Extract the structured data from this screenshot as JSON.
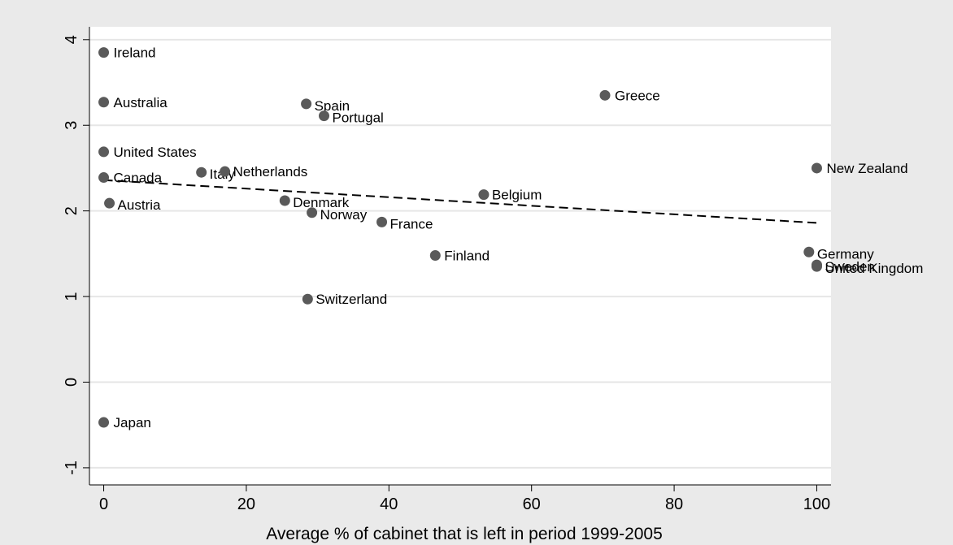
{
  "chart_data": {
    "type": "scatter",
    "title": "",
    "xlabel": "Average % of cabinet that is left in period 1999-2005",
    "ylabel": "",
    "xlim": [
      -2,
      102
    ],
    "ylim": [
      -1.2,
      4.15
    ],
    "x_ticks": [
      0,
      20,
      40,
      60,
      80,
      100
    ],
    "y_ticks": [
      -1,
      0,
      1,
      2,
      3,
      4
    ],
    "grid": "horizontal",
    "legend": "none",
    "marker_color": "#5a5a5a",
    "background_outer": "#eaeaea",
    "background_plot": "#ffffff",
    "points": [
      {
        "label": "Ireland",
        "x": 0,
        "y": 3.85
      },
      {
        "label": "Australia",
        "x": 0,
        "y": 3.27
      },
      {
        "label": "United States",
        "x": 0,
        "y": 2.69
      },
      {
        "label": "Canada",
        "x": 0,
        "y": 2.39
      },
      {
        "label": "Austria",
        "x": 0.8,
        "y": 2.09
      },
      {
        "label": "Japan",
        "x": 0,
        "y": -0.47
      },
      {
        "label": "Italy",
        "x": 13.7,
        "y": 2.45
      },
      {
        "label": "Netherlands",
        "x": 17.0,
        "y": 2.46
      },
      {
        "label": "Denmark",
        "x": 25.4,
        "y": 2.12
      },
      {
        "label": "Spain",
        "x": 28.4,
        "y": 3.25
      },
      {
        "label": "Switzerland",
        "x": 28.6,
        "y": 0.97
      },
      {
        "label": "Norway",
        "x": 29.2,
        "y": 1.98
      },
      {
        "label": "Portugal",
        "x": 30.9,
        "y": 3.11
      },
      {
        "label": "France",
        "x": 39.0,
        "y": 1.87
      },
      {
        "label": "Finland",
        "x": 46.5,
        "y": 1.48
      },
      {
        "label": "Belgium",
        "x": 53.3,
        "y": 2.19
      },
      {
        "label": "Greece",
        "x": 70.3,
        "y": 3.35
      },
      {
        "label": "Germany",
        "x": 98.9,
        "y": 1.52
      },
      {
        "label": "New Zealand",
        "x": 100,
        "y": 2.5
      },
      {
        "label": "Sweden",
        "x": 100,
        "y": 1.37
      },
      {
        "label": "United Kingdom",
        "x": 100,
        "y": 1.35
      }
    ],
    "fit_line": {
      "style": "dashed",
      "x": [
        0,
        100
      ],
      "y": [
        2.36,
        1.86
      ]
    }
  }
}
